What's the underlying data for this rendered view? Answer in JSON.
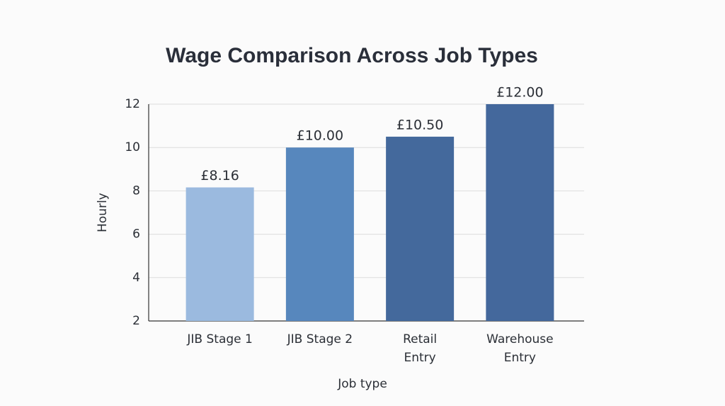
{
  "chart_data": {
    "type": "bar",
    "title": "Wage Comparison Across Job Types",
    "x_label": "Job type",
    "y_label": "Hourly",
    "categories": [
      "JIB Stage 1",
      "JIB Stage 2",
      "Retail Entry",
      "Warehouse Entry"
    ],
    "values": [
      8.16,
      10,
      10.5,
      12
    ],
    "value_labels": [
      "£8.16",
      "£10.00",
      "£10.50",
      "£12.00"
    ],
    "colors": [
      "#9bbadf",
      "#5787bd",
      "#44699c",
      "#44689c"
    ],
    "ylim": [
      2,
      12
    ],
    "yticks": [
      2,
      4,
      6,
      8,
      10,
      12
    ],
    "grid": true
  }
}
